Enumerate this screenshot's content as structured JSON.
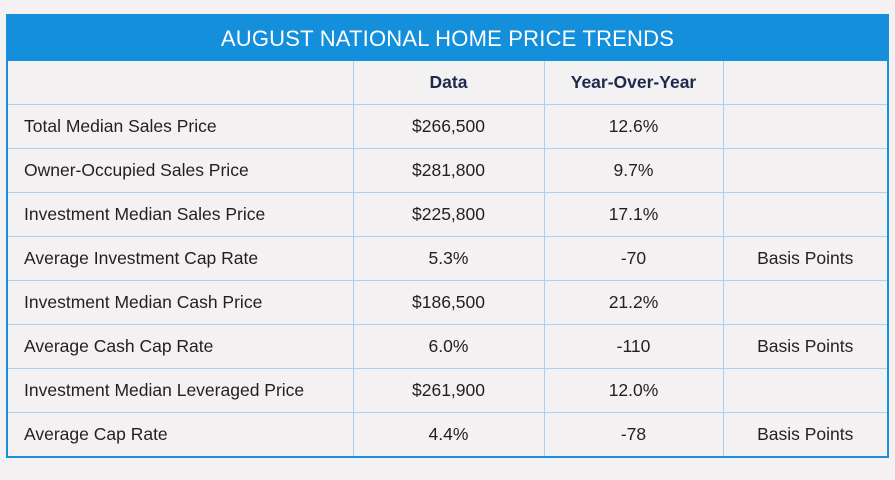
{
  "title": "AUGUST NATIONAL HOME PRICE TRENDS",
  "columns": [
    "",
    "Data",
    "Year-Over-Year",
    ""
  ],
  "rows": [
    {
      "label": "Total Median Sales Price",
      "data": "$266,500",
      "yoy": "12.6%",
      "unit": ""
    },
    {
      "label": "Owner-Occupied Sales Price",
      "data": "$281,800",
      "yoy": "9.7%",
      "unit": ""
    },
    {
      "label": "Investment Median Sales Price",
      "data": "$225,800",
      "yoy": "17.1%",
      "unit": ""
    },
    {
      "label": "Average Investment Cap Rate",
      "data": "5.3%",
      "yoy": "-70",
      "unit": "Basis Points"
    },
    {
      "label": "Investment Median Cash Price",
      "data": "$186,500",
      "yoy": "21.2%",
      "unit": ""
    },
    {
      "label": "Average Cash Cap Rate",
      "data": "6.0%",
      "yoy": "-110",
      "unit": "Basis Points"
    },
    {
      "label": "Investment Median Leveraged Price",
      "data": "$261,900",
      "yoy": "12.0%",
      "unit": ""
    },
    {
      "label": "Average Cap Rate",
      "data": "4.4%",
      "yoy": "-78",
      "unit": "Basis Points"
    }
  ],
  "colors": {
    "header_bg": "#138fdb",
    "grid": "#a9d0ee",
    "header_text": "#1c2b4d",
    "text": "#231f20"
  }
}
